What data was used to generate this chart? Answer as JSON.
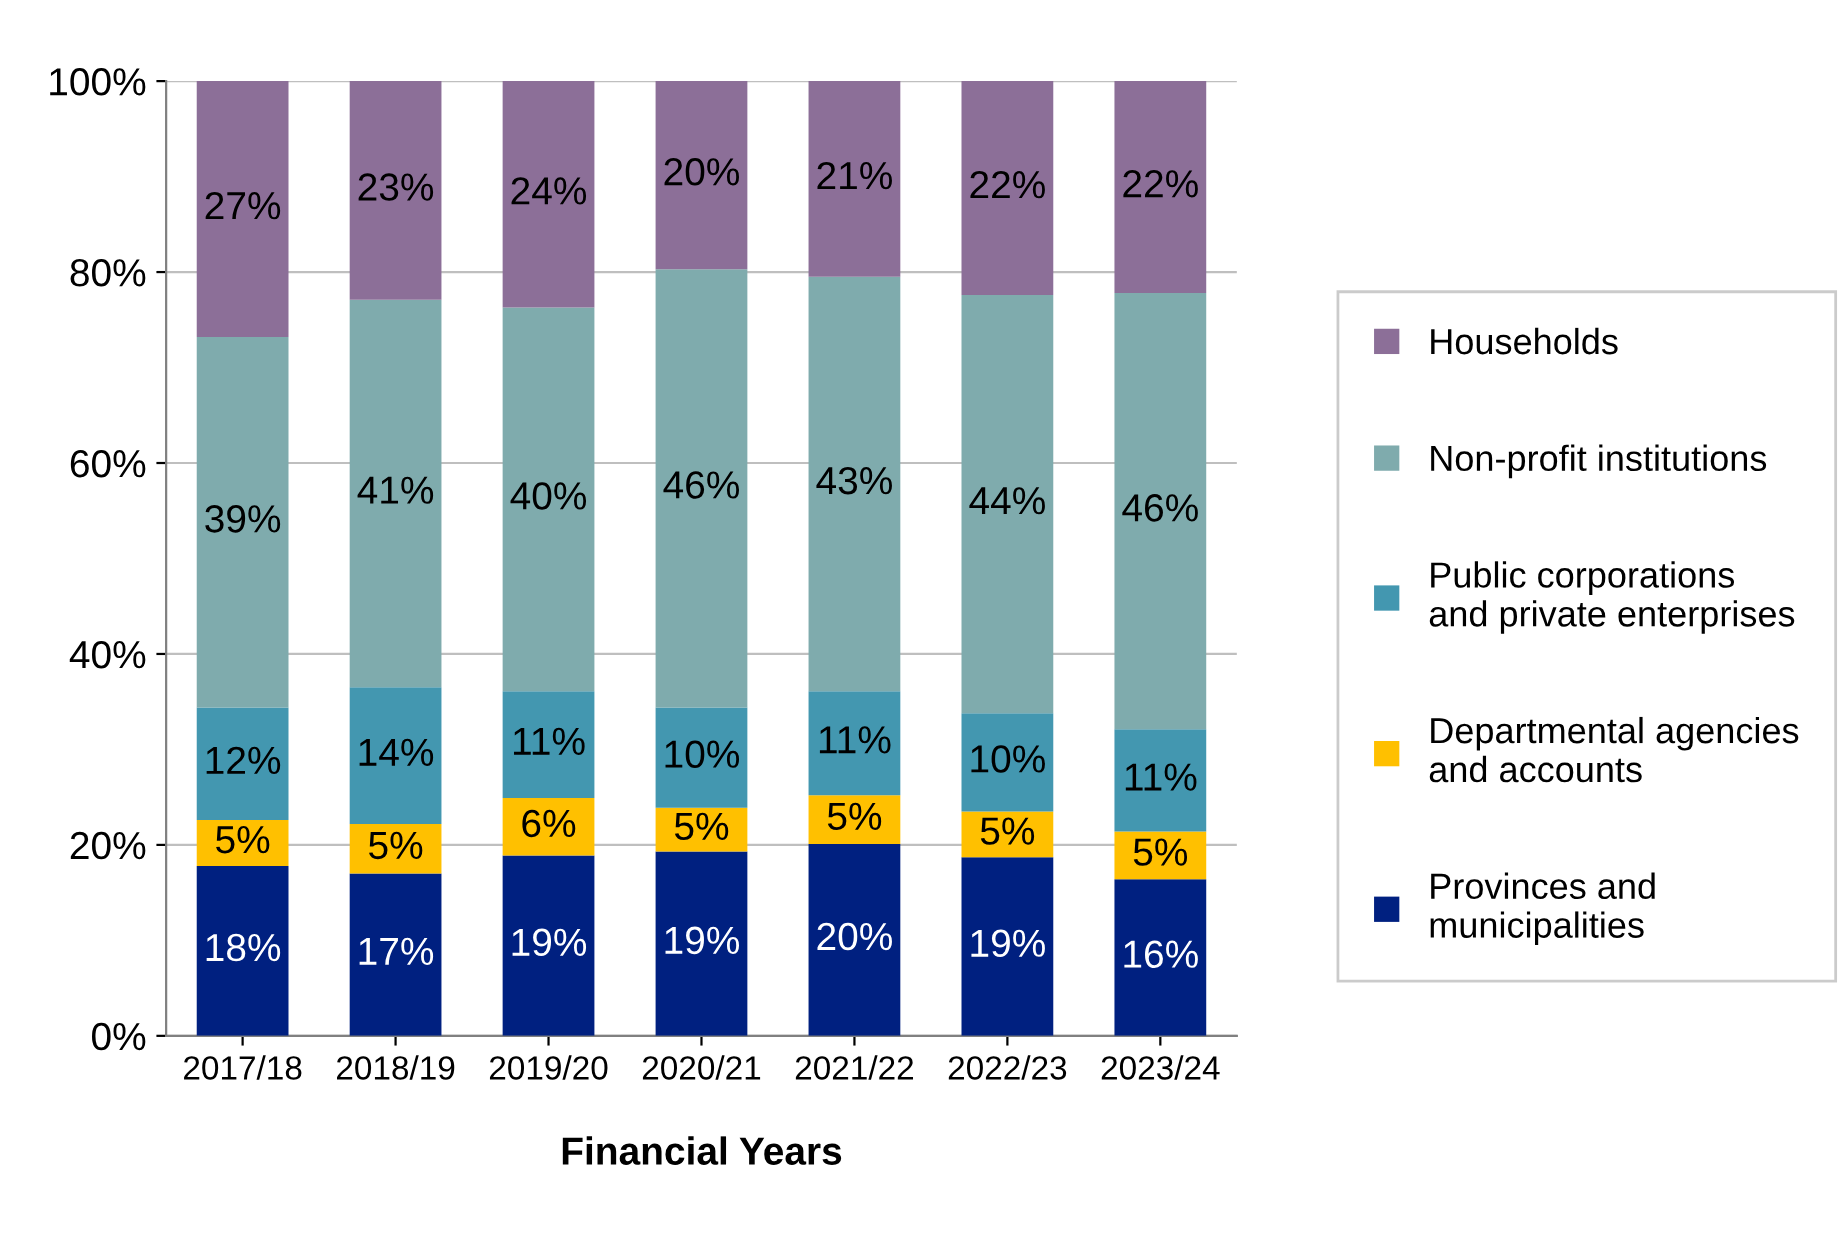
{
  "chart_data": {
    "type": "bar",
    "stacked": true,
    "xlabel": "Financial Years",
    "categories": [
      "2017/18",
      "2018/19",
      "2019/20",
      "2020/21",
      "2021/22",
      "2022/23",
      "2023/24"
    ],
    "series": [
      {
        "name": "Provinces and\nmunicipalities",
        "color": "#002080",
        "values": [
          17.8,
          17.0,
          18.9,
          19.3,
          20.1,
          18.7,
          16.4
        ],
        "value_labels": [
          "18%",
          "17%",
          "19%",
          "19%",
          "20%",
          "19%",
          "16%"
        ]
      },
      {
        "name": "Departmental agencies\nand accounts",
        "color": "#ffc000",
        "values": [
          4.8,
          5.2,
          6.0,
          4.6,
          5.1,
          4.8,
          5.0
        ],
        "value_labels": [
          "5%",
          "5%",
          "6%",
          "5%",
          "5%",
          "5%",
          "5%"
        ]
      },
      {
        "name": "Public corporations\nand private enterprises",
        "color": "#4397b0",
        "values": [
          11.8,
          14.3,
          11.2,
          10.5,
          10.9,
          10.3,
          10.7
        ],
        "value_labels": [
          "12%",
          "14%",
          "11%",
          "10%",
          "11%",
          "10%",
          "11%"
        ]
      },
      {
        "name": "Non-profit institutions",
        "color": "#7fabad",
        "values": [
          38.8,
          40.6,
          40.2,
          45.9,
          43.4,
          43.8,
          45.7
        ],
        "value_labels": [
          "39%",
          "41%",
          "40%",
          "46%",
          "43%",
          "44%",
          "46%"
        ]
      },
      {
        "name": "Households",
        "color": "#8c6f98",
        "values": [
          26.8,
          22.9,
          23.7,
          19.7,
          20.5,
          22.4,
          22.2
        ],
        "value_labels": [
          "27%",
          "23%",
          "24%",
          "20%",
          "21%",
          "22%",
          "22%"
        ]
      }
    ],
    "ylim": [
      0,
      100
    ],
    "yticks": [
      {
        "value": 0,
        "label": "0%"
      },
      {
        "value": 20,
        "label": "20%"
      },
      {
        "value": 40,
        "label": "40%"
      },
      {
        "value": 60,
        "label": "60%"
      },
      {
        "value": 80,
        "label": "80%"
      },
      {
        "value": 100,
        "label": "100%"
      }
    ],
    "grid": "y",
    "legend": "right"
  }
}
